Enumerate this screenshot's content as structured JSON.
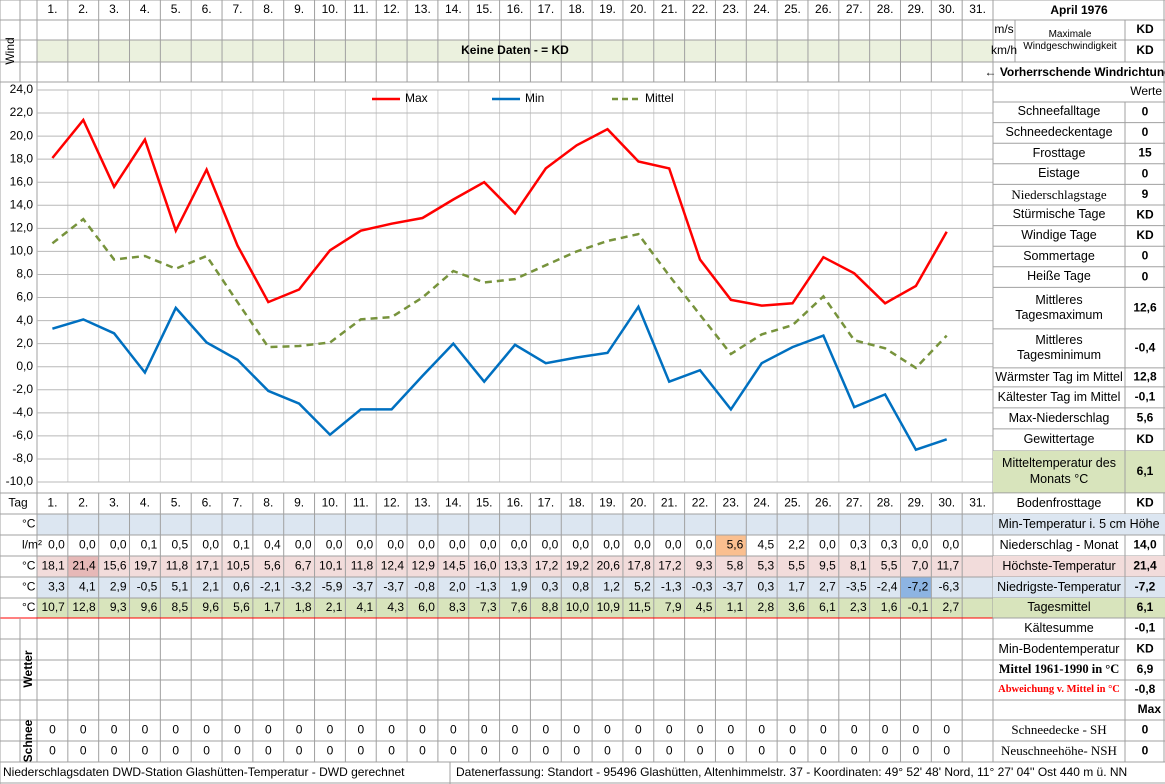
{
  "title": "April 1976",
  "chart_data": {
    "type": "line",
    "categories": [
      "1.",
      "2.",
      "3.",
      "4.",
      "5.",
      "6.",
      "7.",
      "8.",
      "9.",
      "10.",
      "11.",
      "12.",
      "13.",
      "14.",
      "15.",
      "16.",
      "17.",
      "18.",
      "19.",
      "20.",
      "21.",
      "22.",
      "23.",
      "24.",
      "25.",
      "26.",
      "27.",
      "28.",
      "29.",
      "30.",
      "31."
    ],
    "series": [
      {
        "name": "Max",
        "color": "#ff0000",
        "line_style": "solid",
        "values": [
          18.1,
          21.4,
          15.6,
          19.7,
          11.8,
          17.1,
          10.5,
          5.6,
          6.7,
          10.1,
          11.8,
          12.4,
          12.9,
          14.5,
          16.0,
          13.3,
          17.2,
          19.2,
          20.6,
          17.8,
          17.2,
          9.3,
          5.8,
          5.3,
          5.5,
          9.5,
          8.1,
          5.5,
          7.0,
          11.7,
          null
        ],
        "value_labels": [
          "18,1",
          "21,4",
          "15,6",
          "19,7",
          "11,8",
          "17,1",
          "10,5",
          "5,6",
          "6,7",
          "10,1",
          "11,8",
          "12,4",
          "12,9",
          "14,5",
          "16,0",
          "13,3",
          "17,2",
          "19,2",
          "20,6",
          "17,8",
          "17,2",
          "9,3",
          "5,8",
          "5,3",
          "5,5",
          "9,5",
          "8,1",
          "5,5",
          "7,0",
          "11,7",
          null
        ]
      },
      {
        "name": "Min",
        "color": "#0070c0",
        "line_style": "solid",
        "values": [
          3.3,
          4.1,
          2.9,
          -0.5,
          5.1,
          2.1,
          0.6,
          -2.1,
          -3.2,
          -5.9,
          -3.7,
          -3.7,
          -0.8,
          2.0,
          -1.3,
          1.9,
          0.3,
          0.8,
          1.2,
          5.2,
          -1.3,
          -0.3,
          -3.7,
          0.3,
          1.7,
          2.7,
          -3.5,
          -2.4,
          -7.2,
          -6.3,
          null
        ],
        "value_labels": [
          "3,3",
          "4,1",
          "2,9",
          "-0,5",
          "5,1",
          "2,1",
          "0,6",
          "-2,1",
          "-3,2",
          "-5,9",
          "-3,7",
          "-3,7",
          "-0,8",
          "2,0",
          "-1,3",
          "1,9",
          "0,3",
          "0,8",
          "1,2",
          "5,2",
          "-1,3",
          "-0,3",
          "-3,7",
          "0,3",
          "1,7",
          "2,7",
          "-3,5",
          "-2,4",
          "-7,2",
          "-6,3",
          null
        ]
      },
      {
        "name": "Mittel",
        "color": "#77933c",
        "line_style": "dashed",
        "values": [
          10.7,
          12.8,
          9.3,
          9.6,
          8.5,
          9.6,
          5.6,
          1.7,
          1.8,
          2.1,
          4.1,
          4.3,
          6.0,
          8.3,
          7.3,
          7.6,
          8.8,
          10.0,
          10.9,
          11.5,
          7.9,
          4.5,
          1.1,
          2.8,
          3.6,
          6.1,
          2.3,
          1.6,
          -0.1,
          2.7,
          null
        ],
        "value_labels": [
          "10,7",
          "12,8",
          "9,3",
          "9,6",
          "8,5",
          "9,6",
          "5,6",
          "1,7",
          "1,8",
          "2,1",
          "4,1",
          "4,3",
          "6,0",
          "8,3",
          "7,3",
          "7,6",
          "8,8",
          "10,0",
          "10,9",
          "11,5",
          "7,9",
          "4,5",
          "1,1",
          "2,8",
          "3,6",
          "6,1",
          "2,3",
          "1,6",
          "-0,1",
          "2,7",
          null
        ]
      }
    ],
    "ylim": [
      -10,
      24
    ],
    "yticks": [
      {
        "value": 24,
        "label": "24,0"
      },
      {
        "value": 22,
        "label": "22,0"
      },
      {
        "value": 20,
        "label": "20,0"
      },
      {
        "value": 18,
        "label": "18,0"
      },
      {
        "value": 16,
        "label": "16,0"
      },
      {
        "value": 14,
        "label": "14,0"
      },
      {
        "value": 12,
        "label": "12,0"
      },
      {
        "value": 10,
        "label": "10,0"
      },
      {
        "value": 8,
        "label": "8,0"
      },
      {
        "value": 6,
        "label": "6,0"
      },
      {
        "value": 4,
        "label": "4,0"
      },
      {
        "value": 2,
        "label": "2,0"
      },
      {
        "value": 0,
        "label": "0,0"
      },
      {
        "value": -2,
        "label": "-2,0"
      },
      {
        "value": -4,
        "label": "-4,0"
      },
      {
        "value": -6,
        "label": "-6,0"
      },
      {
        "value": -8,
        "label": "-8,0"
      },
      {
        "value": -10,
        "label": "-10,0"
      }
    ],
    "grid": true
  },
  "wind": {
    "units": [
      "m/s",
      "km/h"
    ],
    "label": "Maximale Windgeschwindigkeit",
    "values": [
      "KD",
      "KD"
    ],
    "note": "Keine Daten -  = KD",
    "direction": "← Vorherrschende Windrichtung"
  },
  "row_labels": {
    "wind": "Wind",
    "day": "Tag",
    "min5": "°C",
    "precip": "l/m²",
    "max": "°C",
    "min": "°C",
    "mean": "°C",
    "weather": "Wetter",
    "snow": "Schnee"
  },
  "precipitation": [
    "0,0",
    "0,0",
    "0,0",
    "0,1",
    "0,5",
    "0,0",
    "0,1",
    "0,4",
    "0,0",
    "0,0",
    "0,0",
    "0,0",
    "0,0",
    "0,0",
    "0,0",
    "0,0",
    "0,0",
    "0,0",
    "0,0",
    "0,0",
    "0,0",
    "0,0",
    "5,6",
    "4,5",
    "2,2",
    "0,0",
    "0,3",
    "0,3",
    "0,0",
    "0,0",
    null
  ],
  "snow_depth": [
    0,
    0,
    0,
    0,
    0,
    0,
    0,
    0,
    0,
    0,
    0,
    0,
    0,
    0,
    0,
    0,
    0,
    0,
    0,
    0,
    0,
    0,
    0,
    0,
    0,
    0,
    0,
    0,
    0,
    0,
    null
  ],
  "new_snow": [
    0,
    0,
    0,
    0,
    0,
    0,
    0,
    0,
    0,
    0,
    0,
    0,
    0,
    0,
    0,
    0,
    0,
    0,
    0,
    0,
    0,
    0,
    0,
    0,
    0,
    0,
    0,
    0,
    0,
    0,
    null
  ],
  "values_header": "Werte",
  "stats": [
    {
      "label": "Schneefalltage",
      "value": "0"
    },
    {
      "label": "Schneedeckentage",
      "value": "0"
    },
    {
      "label": "Frosttage",
      "value": "15"
    },
    {
      "label": "Eistage",
      "value": "0"
    },
    {
      "label": "Niederschlagstage",
      "value": "9"
    },
    {
      "label": "Stürmische Tage",
      "value": "KD"
    },
    {
      "label": "Windige Tage",
      "value": "KD"
    },
    {
      "label": "Sommertage",
      "value": "0"
    },
    {
      "label": "Heiße Tage",
      "value": "0"
    },
    {
      "label": "Mittleres Tagesmaximum",
      "value": "12,6"
    },
    {
      "label": "Mittleres Tagesminimum",
      "value": "-0,4"
    },
    {
      "label": "Wärmster Tag im Mittel",
      "value": "12,8"
    },
    {
      "label": "Kältester Tag im Mittel",
      "value": "-0,1"
    },
    {
      "label": "Max-Niederschlag",
      "value": "5,6"
    },
    {
      "label": "Gewittertage",
      "value": "KD"
    },
    {
      "label": "Mitteltemperatur des Monats °C",
      "value": "6,1"
    }
  ],
  "summary": [
    {
      "label": "Bodenfrosttage",
      "value": "KD"
    },
    {
      "label": "Min-Temperatur i. 5 cm Höhe"
    },
    {
      "label": "Niederschlag - Monat",
      "value": "14,0"
    },
    {
      "label": "Höchste-Temperatur",
      "value": "21,4"
    },
    {
      "label": "Niedrigste-Temperatur",
      "value": "-7,2"
    },
    {
      "label": "Tagesmittel",
      "value": "6,1"
    },
    {
      "label": "Kältesumme",
      "value": "-0,1"
    },
    {
      "label": "Min-Bodentemperatur",
      "value": "KD"
    },
    {
      "label": "Mittel 1961-1990 in °C",
      "value": "6,9"
    },
    {
      "label": "Abweichung v. Mittel in °C",
      "value": "-0,8"
    },
    {
      "value": "Max"
    },
    {
      "label": "Schneedecke -  SH",
      "value": "0"
    },
    {
      "label": "Neuschneehöhe- NSH",
      "value": "0"
    }
  ],
  "footer": {
    "left": "Niederschlagsdaten DWD-Station Glashütten-Temperatur -  DWD gerechnet",
    "right": "Datenerfassung: Standort -  95496 Glashütten, Altenhimmelstr. 37 - Koordinaten: 49° 52' 48' Nord,  11° 27' 04'' Ost  440 m ü. NN"
  }
}
